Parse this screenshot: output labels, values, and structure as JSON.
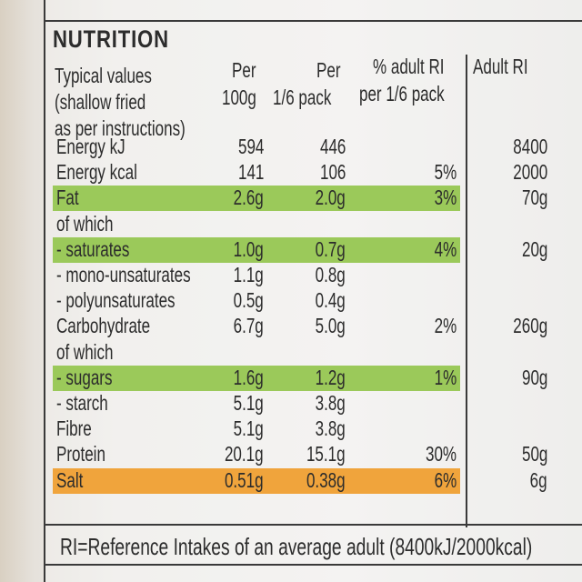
{
  "title": "NUTRITION",
  "header": {
    "col0": [
      "Typical values",
      "(shallow fried",
      "as per instructions)"
    ],
    "col1": [
      "Per",
      "100g"
    ],
    "col2": [
      "Per",
      "1/6 pack"
    ],
    "col3": [
      "% adult RI",
      "per 1/6 pack"
    ],
    "col4": [
      "Adult RI"
    ]
  },
  "rows": [
    {
      "label": "Energy kJ",
      "per100": "594",
      "perpack": "446",
      "pct": "",
      "ri": "8400"
    },
    {
      "label": "Energy kcal",
      "per100": "141",
      "perpack": "106",
      "pct": "5%",
      "ri": "2000"
    },
    {
      "label": "Fat",
      "per100": "2.6g",
      "perpack": "2.0g",
      "pct": "3%",
      "ri": "70g",
      "highlight": "green"
    },
    {
      "label": "of which",
      "per100": "",
      "perpack": "",
      "pct": "",
      "ri": ""
    },
    {
      "label": "- saturates",
      "per100": "1.0g",
      "perpack": "0.7g",
      "pct": "4%",
      "ri": "20g",
      "highlight": "green"
    },
    {
      "label": "- mono-unsaturates",
      "per100": "1.1g",
      "perpack": "0.8g",
      "pct": "",
      "ri": ""
    },
    {
      "label": "- polyunsaturates",
      "per100": "0.5g",
      "perpack": "0.4g",
      "pct": "",
      "ri": ""
    },
    {
      "label": "Carbohydrate",
      "per100": "6.7g",
      "perpack": "5.0g",
      "pct": "2%",
      "ri": "260g"
    },
    {
      "label": "of which",
      "per100": "",
      "perpack": "",
      "pct": "",
      "ri": ""
    },
    {
      "label": "- sugars",
      "per100": "1.6g",
      "perpack": "1.2g",
      "pct": "1%",
      "ri": "90g",
      "highlight": "green"
    },
    {
      "label": "- starch",
      "per100": "5.1g",
      "perpack": "3.8g",
      "pct": "",
      "ri": ""
    },
    {
      "label": "Fibre",
      "per100": "5.1g",
      "perpack": "3.8g",
      "pct": "",
      "ri": ""
    },
    {
      "label": "Protein",
      "per100": "20.1g",
      "perpack": "15.1g",
      "pct": "30%",
      "ri": "50g"
    },
    {
      "label": "Salt",
      "per100": "0.51g",
      "perpack": "0.38g",
      "pct": "6%",
      "ri": "6g",
      "highlight": "orange"
    }
  ],
  "footnote": "RI=Reference Intakes of an average adult (8400kJ/2000kcal)",
  "colors": {
    "green": "#9bc95a",
    "orange": "#f0a43c"
  }
}
